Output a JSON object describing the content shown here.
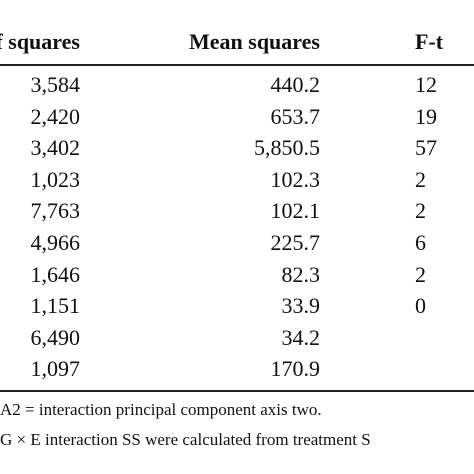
{
  "table": {
    "header": [
      "of squares",
      "Mean squares",
      "F-t"
    ],
    "rows": [
      [
        "3,584",
        "440.2",
        "12"
      ],
      [
        "2,420",
        "653.7",
        "19"
      ],
      [
        "3,402",
        "5,850.5",
        "57"
      ],
      [
        "1,023",
        "102.3",
        "2"
      ],
      [
        "7,763",
        "102.1",
        "2"
      ],
      [
        "4,966",
        "225.7",
        "6"
      ],
      [
        "1,646",
        "82.3",
        "2"
      ],
      [
        "1,151",
        "33.9",
        "0"
      ],
      [
        "6,490",
        "34.2"
      ],
      [
        "1,097",
        "170.9"
      ]
    ]
  },
  "footnotes": [
    "A2 = interaction principal component axis two.",
    "G × E interaction SS were calculated from treatment S"
  ]
}
